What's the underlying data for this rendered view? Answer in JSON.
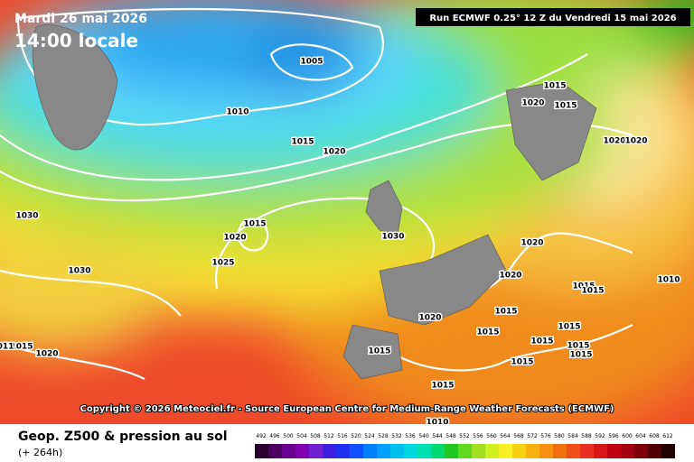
{
  "header": {
    "date": "Mardi 26 mai 2026",
    "time": "14:00 locale",
    "run": "Run ECMWF 0.25° 12 Z du Vendredi 15 mai 2026"
  },
  "isobars": [
    "1005",
    "1010",
    "1015",
    "1020",
    "1030",
    "1015",
    "1020",
    "1025",
    "1030",
    "1030",
    "1015",
    "1020",
    "1015",
    "1020",
    "1020",
    "1020",
    "1020",
    "1015",
    "1015",
    "1010",
    "1020",
    "1015",
    "1015",
    "1015",
    "1015",
    "1015",
    "1015",
    "1015",
    "1020",
    "1015",
    "1015",
    "1015",
    "1010",
    "011"
  ],
  "copyright": "Copyright © 2026 Meteociel.fr - Source European Centre for Medium-Range Weather Forecasts (ECMWF)",
  "legend": {
    "title": "Geop. Z500 & pression au sol",
    "lead": "(+ 264h)",
    "scale": [
      492,
      496,
      500,
      504,
      508,
      512,
      516,
      520,
      524,
      528,
      532,
      536,
      540,
      544,
      548,
      552,
      556,
      560,
      564,
      568,
      572,
      576,
      580,
      584,
      588,
      592,
      596,
      600,
      604,
      608,
      612
    ]
  }
}
